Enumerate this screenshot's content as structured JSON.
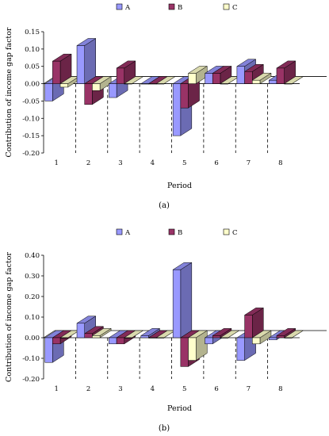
{
  "colors": {
    "A": "#9999ff",
    "B": "#993366",
    "C": "#ffffcc"
  },
  "chart_data": [
    {
      "type": "bar",
      "caption": "(a)",
      "xlabel": "Period",
      "ylabel": "Contribution of income gap factor",
      "categories": [
        "1",
        "2",
        "3",
        "4",
        "5",
        "6",
        "7",
        "8"
      ],
      "ylim": [
        -0.2,
        0.15
      ],
      "yticks": [
        "0.15",
        "0.10",
        "0.05",
        "0.00",
        "-0.05",
        "-0.10",
        "-0.15",
        "-0.20"
      ],
      "ytick_values": [
        0.15,
        0.1,
        0.05,
        0.0,
        -0.05,
        -0.1,
        -0.15,
        -0.2
      ],
      "legend_position": "top",
      "series": [
        {
          "name": "A",
          "values": [
            -0.05,
            0.11,
            -0.04,
            0.0,
            -0.15,
            0.03,
            0.05,
            0.01
          ]
        },
        {
          "name": "B",
          "values": [
            0.065,
            -0.06,
            0.045,
            0.0,
            -0.07,
            0.03,
            0.035,
            0.045
          ]
        },
        {
          "name": "C",
          "values": [
            -0.01,
            -0.02,
            0.0,
            0.0,
            0.03,
            0.0,
            0.01,
            0.0
          ]
        }
      ]
    },
    {
      "type": "bar",
      "caption": "(b)",
      "xlabel": "Period",
      "ylabel": "Contribution of income gap factor",
      "categories": [
        "1",
        "2",
        "3",
        "4",
        "5",
        "6",
        "7",
        "8"
      ],
      "ylim": [
        -0.2,
        0.4
      ],
      "yticks": [
        "0.40",
        "0.30",
        "0.20",
        "0.10",
        "0.00",
        "-0.10",
        "-0.20"
      ],
      "ytick_values": [
        0.4,
        0.3,
        0.2,
        0.1,
        0.0,
        -0.1,
        -0.2
      ],
      "legend_position": "top",
      "series": [
        {
          "name": "A",
          "values": [
            -0.12,
            0.07,
            -0.03,
            0.01,
            0.33,
            -0.03,
            -0.11,
            -0.01
          ]
        },
        {
          "name": "B",
          "values": [
            -0.03,
            0.02,
            -0.03,
            0.0,
            -0.14,
            0.01,
            0.11,
            0.01
          ]
        },
        {
          "name": "C",
          "values": [
            0.0,
            0.01,
            0.0,
            0.0,
            -0.11,
            0.0,
            -0.03,
            0.0
          ]
        }
      ]
    }
  ]
}
